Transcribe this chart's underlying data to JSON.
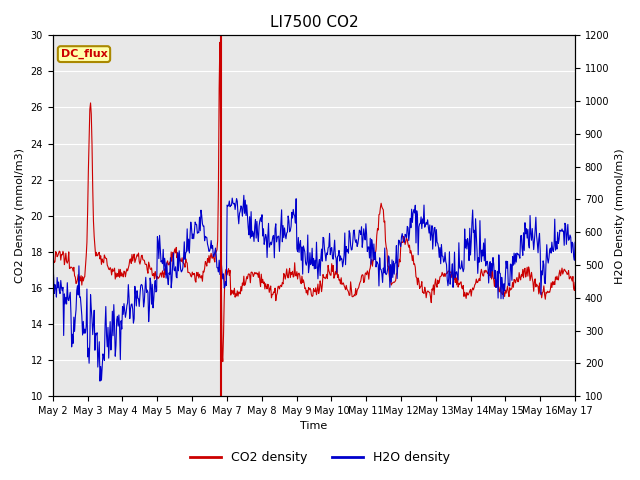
{
  "title": "LI7500 CO2",
  "xlabel": "Time",
  "ylabel_left": "CO2 Density (mmol/m3)",
  "ylabel_right": "H2O Density (mmol/m3)",
  "ylim_left": [
    10,
    30
  ],
  "ylim_right": [
    100,
    1200
  ],
  "yticks_left": [
    10,
    12,
    14,
    16,
    18,
    20,
    22,
    24,
    26,
    28,
    30
  ],
  "yticks_right": [
    100,
    200,
    300,
    400,
    500,
    600,
    700,
    800,
    900,
    1000,
    1100,
    1200
  ],
  "background_color": "#e8e8e8",
  "dc_flux_label": "DC_flux",
  "legend_co2": "CO2 density",
  "legend_h2o": "H2O density",
  "co2_color": "#cc0000",
  "h2o_color": "#0000cc",
  "vline_x": 4.83,
  "vline_color": "#cc0000"
}
